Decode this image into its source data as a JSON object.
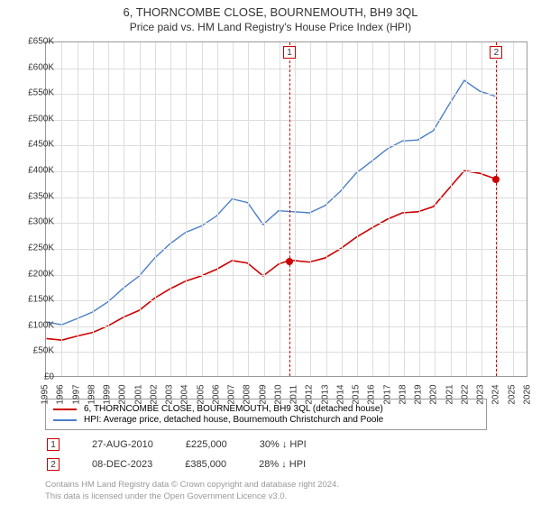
{
  "title": "6, THORNCOMBE CLOSE, BOURNEMOUTH, BH9 3QL",
  "subtitle": "Price paid vs. HM Land Registry's House Price Index (HPI)",
  "chart": {
    "type": "line",
    "background_color": "#ffffff",
    "grid_color": "#dddddd",
    "border_color": "#999999",
    "x_years": [
      1995,
      1996,
      1997,
      1998,
      1999,
      2000,
      2001,
      2002,
      2003,
      2004,
      2005,
      2006,
      2007,
      2008,
      2009,
      2010,
      2011,
      2012,
      2013,
      2014,
      2015,
      2016,
      2017,
      2018,
      2019,
      2020,
      2021,
      2022,
      2023,
      2024,
      2025,
      2026
    ],
    "y_ticks": [
      0,
      50000,
      100000,
      150000,
      200000,
      250000,
      300000,
      350000,
      400000,
      450000,
      500000,
      550000,
      600000,
      650000
    ],
    "y_labels": [
      "£0",
      "£50K",
      "£100K",
      "£150K",
      "£200K",
      "£250K",
      "£300K",
      "£350K",
      "£400K",
      "£450K",
      "£500K",
      "£550K",
      "£600K",
      "£650K"
    ],
    "xlim": [
      1995,
      2026
    ],
    "ylim": [
      0,
      650000
    ],
    "series": [
      {
        "name": "6, THORNCOMBE CLOSE, BOURNEMOUTH, BH9 3QL (detached house)",
        "color": "#cc0000",
        "line_width": 1.6,
        "data": [
          [
            1995,
            73000
          ],
          [
            1996,
            70000
          ],
          [
            1997,
            78000
          ],
          [
            1998,
            85000
          ],
          [
            1999,
            98000
          ],
          [
            2000,
            115000
          ],
          [
            2001,
            128000
          ],
          [
            2002,
            152000
          ],
          [
            2003,
            170000
          ],
          [
            2004,
            185000
          ],
          [
            2005,
            195000
          ],
          [
            2006,
            208000
          ],
          [
            2007,
            225000
          ],
          [
            2008,
            220000
          ],
          [
            2009,
            195000
          ],
          [
            2010,
            218000
          ],
          [
            2010.65,
            225000
          ],
          [
            2011,
            225000
          ],
          [
            2012,
            222000
          ],
          [
            2013,
            230000
          ],
          [
            2014,
            248000
          ],
          [
            2015,
            270000
          ],
          [
            2016,
            288000
          ],
          [
            2017,
            305000
          ],
          [
            2018,
            318000
          ],
          [
            2019,
            320000
          ],
          [
            2020,
            330000
          ],
          [
            2021,
            365000
          ],
          [
            2022,
            400000
          ],
          [
            2023,
            395000
          ],
          [
            2023.94,
            385000
          ]
        ]
      },
      {
        "name": "HPI: Average price, detached house, Bournemouth Christchurch and Poole",
        "color": "#4a7ec8",
        "line_width": 1.4,
        "data": [
          [
            1995,
            105000
          ],
          [
            1996,
            100000
          ],
          [
            1997,
            112000
          ],
          [
            1998,
            125000
          ],
          [
            1999,
            145000
          ],
          [
            2000,
            172000
          ],
          [
            2001,
            195000
          ],
          [
            2002,
            230000
          ],
          [
            2003,
            258000
          ],
          [
            2004,
            280000
          ],
          [
            2005,
            292000
          ],
          [
            2006,
            312000
          ],
          [
            2007,
            345000
          ],
          [
            2008,
            338000
          ],
          [
            2009,
            295000
          ],
          [
            2010,
            322000
          ],
          [
            2011,
            320000
          ],
          [
            2012,
            318000
          ],
          [
            2013,
            332000
          ],
          [
            2014,
            360000
          ],
          [
            2015,
            395000
          ],
          [
            2016,
            418000
          ],
          [
            2017,
            442000
          ],
          [
            2018,
            458000
          ],
          [
            2019,
            460000
          ],
          [
            2020,
            478000
          ],
          [
            2021,
            528000
          ],
          [
            2022,
            576000
          ],
          [
            2023,
            555000
          ],
          [
            2024,
            545000
          ]
        ]
      }
    ],
    "markers": [
      {
        "id": "1",
        "x": 2010.65,
        "y": 225000,
        "box_color": "#cc0000",
        "dot_color": "#cc0000"
      },
      {
        "id": "2",
        "x": 2023.94,
        "y": 385000,
        "box_color": "#cc0000",
        "dot_color": "#cc0000"
      }
    ]
  },
  "legend": {
    "items": [
      {
        "color": "#cc0000",
        "label": "6, THORNCOMBE CLOSE, BOURNEMOUTH, BH9 3QL (detached house)"
      },
      {
        "color": "#4a7ec8",
        "label": "HPI: Average price, detached house, Bournemouth Christchurch and Poole"
      }
    ]
  },
  "annotations": [
    {
      "id": "1",
      "box_color": "#cc0000",
      "date": "27-AUG-2010",
      "price": "£225,000",
      "delta": "30% ↓ HPI"
    },
    {
      "id": "2",
      "box_color": "#cc0000",
      "date": "08-DEC-2023",
      "price": "£385,000",
      "delta": "28% ↓ HPI"
    }
  ],
  "copyright": {
    "line1": "Contains HM Land Registry data © Crown copyright and database right 2024.",
    "line2": "This data is licensed under the Open Government Licence v3.0."
  }
}
